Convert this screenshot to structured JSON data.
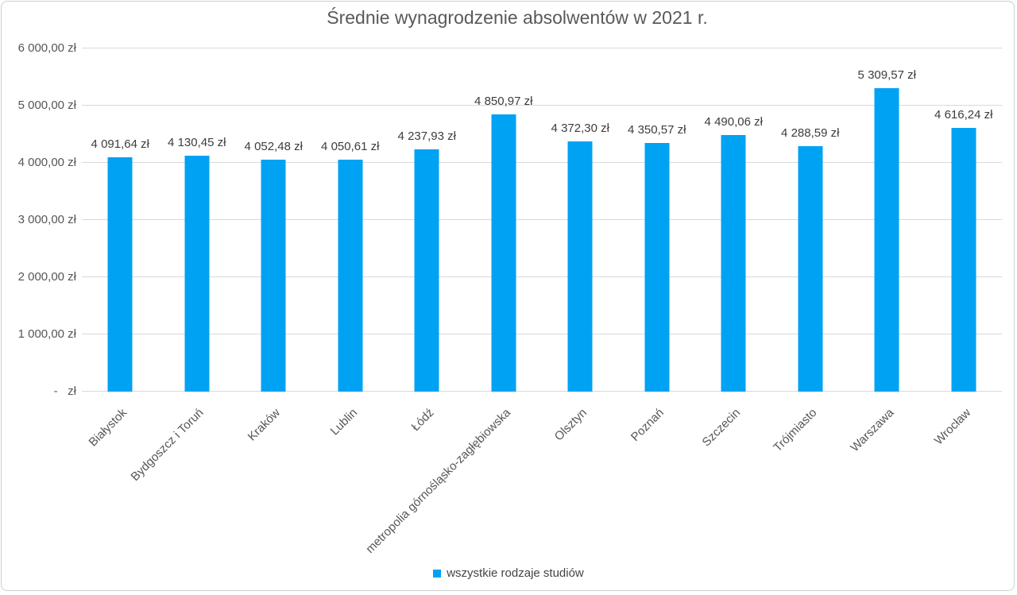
{
  "title": "Średnie wynagrodzenie absolwentów w 2021 r.",
  "legend": {
    "swatch_color": "#00a2f3",
    "label": "wszystkie rodzaje studiów"
  },
  "chart_data": {
    "type": "bar",
    "title": "Średnie wynagrodzenie absolwentów w 2021 r.",
    "categories": [
      "Białystok",
      "Bydgoszcz i Toruń",
      "Kraków",
      "Lublin",
      "Łódź",
      "metropolia górnośląsko-zagłębiowska",
      "Olsztyn",
      "Poznań",
      "Szczecin",
      "Trójmiasto",
      "Warszawa",
      "Wrocław"
    ],
    "series": [
      {
        "name": "wszystkie rodzaje studiów",
        "values": [
          4091.64,
          4130.45,
          4052.48,
          4050.61,
          4237.93,
          4850.97,
          4372.3,
          4350.57,
          4490.06,
          4288.59,
          5309.57,
          4616.24
        ]
      }
    ],
    "value_labels": [
      "4 091,64 zł",
      "4 130,45 zł",
      "4 052,48 zł",
      "4 050,61 zł",
      "4 237,93 zł",
      "4 850,97 zł",
      "4 372,30 zł",
      "4 350,57 zł",
      "4 490,06 zł",
      "4 288,59 zł",
      "5 309,57 zł",
      "4 616,24 zł"
    ],
    "xlabel": "",
    "ylabel": "",
    "y_axis": {
      "min": 0,
      "max": 6000,
      "tick_step": 1000,
      "tick_labels": [
        "-   zł",
        "1 000,00 zł",
        "2 000,00 zł",
        "3 000,00 zł",
        "4 000,00 zł",
        "5 000,00 zł",
        "6 000,00 zł"
      ]
    },
    "grid": true,
    "legend_position": "bottom",
    "bar_color": "#00a2f3",
    "gridline_color": "#d9d9d9"
  }
}
